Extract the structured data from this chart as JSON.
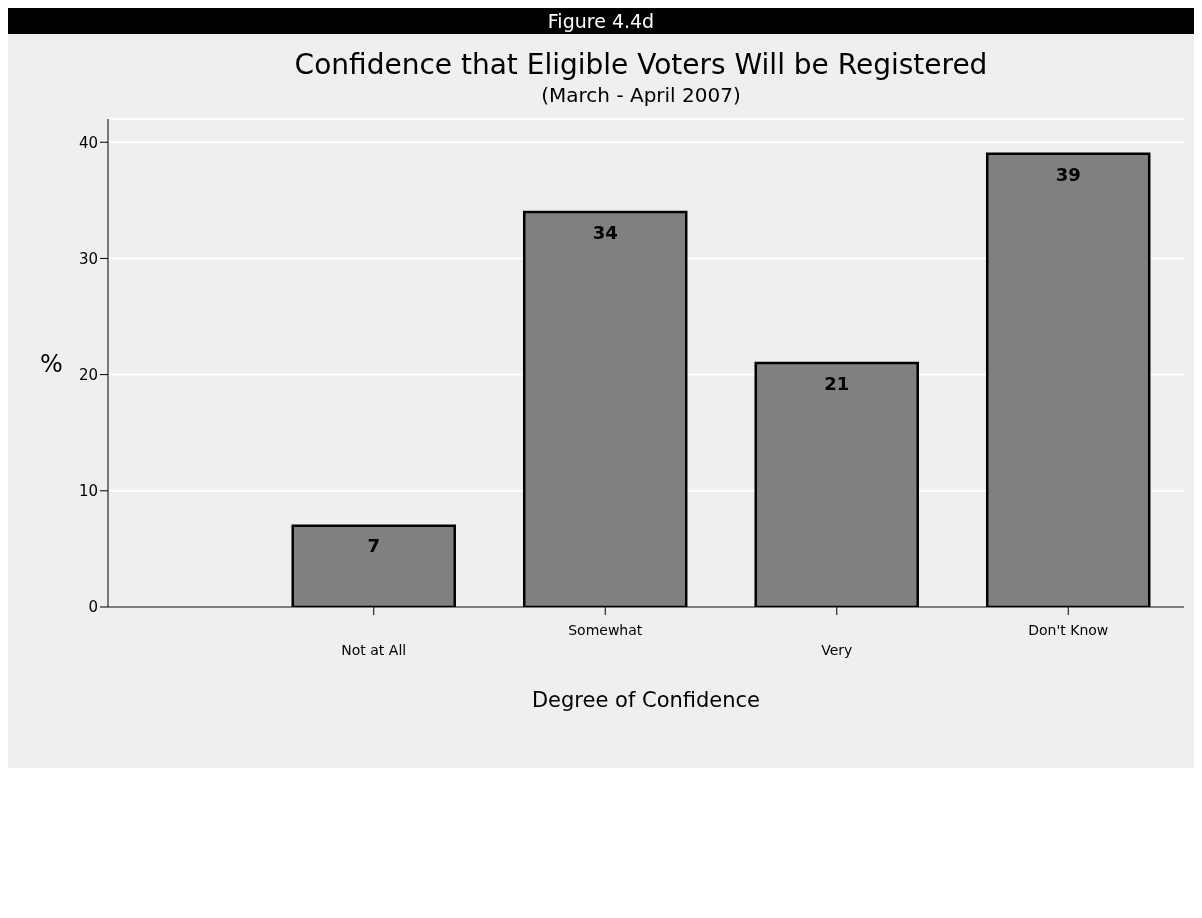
{
  "chart_data": {
    "type": "bar",
    "title": "Confidence that Eligible Voters Will be Registered",
    "subtitle": "(March - April 2007)",
    "annotations": [
      "Figure 4.4d"
    ],
    "xlabel": "Degree of Confidence",
    "ylabel": "%",
    "categories": [
      "Not at All",
      "Somewhat",
      "Very",
      "Don't Know"
    ],
    "values": [
      7,
      34,
      21,
      39
    ],
    "color": "#808080",
    "data_labels": true,
    "ylim": [
      0,
      42
    ],
    "yticks": [
      0,
      10,
      20,
      30,
      40
    ],
    "grid": "y"
  }
}
